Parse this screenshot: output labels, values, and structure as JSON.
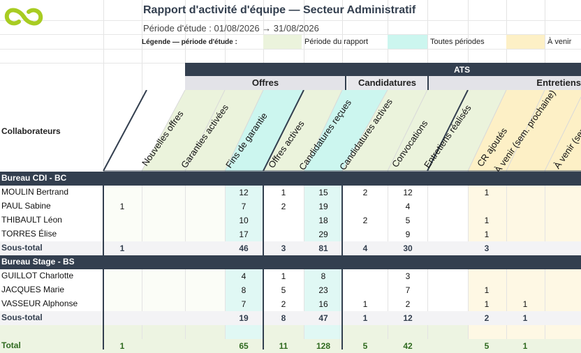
{
  "header": {
    "title": "Rapport d'activité d'équipe — Secteur Administratif",
    "period": "Période d'étude : 01/08/2026 → 31/08/2026",
    "legend_label": "Légende — période d'étude :",
    "legend": [
      {
        "text": "Période du rapport",
        "color": "#ebf3dc"
      },
      {
        "text": "Toutes périodes",
        "color": "#ccf6ef"
      },
      {
        "text": "À venir",
        "color": "#fdf0c6"
      }
    ]
  },
  "groups": {
    "top": "ATS",
    "offres": "Offres",
    "candidatures": "Candidatures",
    "entretiens": "Entretiens"
  },
  "row_header": "Collaborateurs",
  "columns": [
    "Nouvelles offres",
    "Garanties activées",
    "Fins de garantie",
    "Offres actives",
    "Candidatures reçues",
    "Candidatures actives",
    "Convocations",
    "Entretiens réalisés",
    "CR ajoutés",
    "À venir (sem. prochaine)",
    "À venir (sem."
  ],
  "sections": [
    {
      "name": "Bureau CDI - BC",
      "rows": [
        {
          "name": "MOULIN Bertrand",
          "v": [
            "",
            "",
            "",
            "12",
            "1",
            "15",
            "2",
            "12",
            "",
            "1",
            "",
            ""
          ]
        },
        {
          "name": "PAUL Sabine",
          "v": [
            "1",
            "",
            "",
            "7",
            "2",
            "19",
            "",
            "4",
            "",
            "",
            "",
            ""
          ]
        },
        {
          "name": "THIBAULT Léon",
          "v": [
            "",
            "",
            "",
            "10",
            "",
            "18",
            "2",
            "5",
            "",
            "1",
            "",
            ""
          ]
        },
        {
          "name": "TORRES Élise",
          "v": [
            "",
            "",
            "",
            "17",
            "",
            "29",
            "",
            "9",
            "",
            "1",
            "",
            ""
          ]
        }
      ],
      "subtotal": {
        "name": "Sous-total",
        "v": [
          "1",
          "",
          "",
          "46",
          "3",
          "81",
          "4",
          "30",
          "",
          "3",
          "",
          ""
        ]
      }
    },
    {
      "name": "Bureau Stage - BS",
      "rows": [
        {
          "name": "GUILLOT Charlotte",
          "v": [
            "",
            "",
            "",
            "4",
            "1",
            "8",
            "",
            "3",
            "",
            "",
            "",
            ""
          ]
        },
        {
          "name": "JACQUES Marie",
          "v": [
            "",
            "",
            "",
            "8",
            "5",
            "23",
            "",
            "7",
            "",
            "1",
            "",
            ""
          ]
        },
        {
          "name": "VASSEUR Alphonse",
          "v": [
            "",
            "",
            "",
            "7",
            "2",
            "16",
            "1",
            "2",
            "",
            "1",
            "1",
            ""
          ]
        }
      ],
      "subtotal": {
        "name": "Sous-total",
        "v": [
          "",
          "",
          "",
          "19",
          "8",
          "47",
          "1",
          "12",
          "",
          "2",
          "1",
          ""
        ]
      }
    }
  ],
  "total": {
    "name": "Total",
    "v": [
      "1",
      "",
      "",
      "65",
      "11",
      "128",
      "5",
      "42",
      "",
      "5",
      "1",
      ""
    ]
  },
  "colors": {
    "navy": "#333f4f",
    "logo": "#a8cc22",
    "green_band": "#ebf3dc",
    "teal_band": "#ccf6ef",
    "yellow_band": "#fdf0c6"
  }
}
